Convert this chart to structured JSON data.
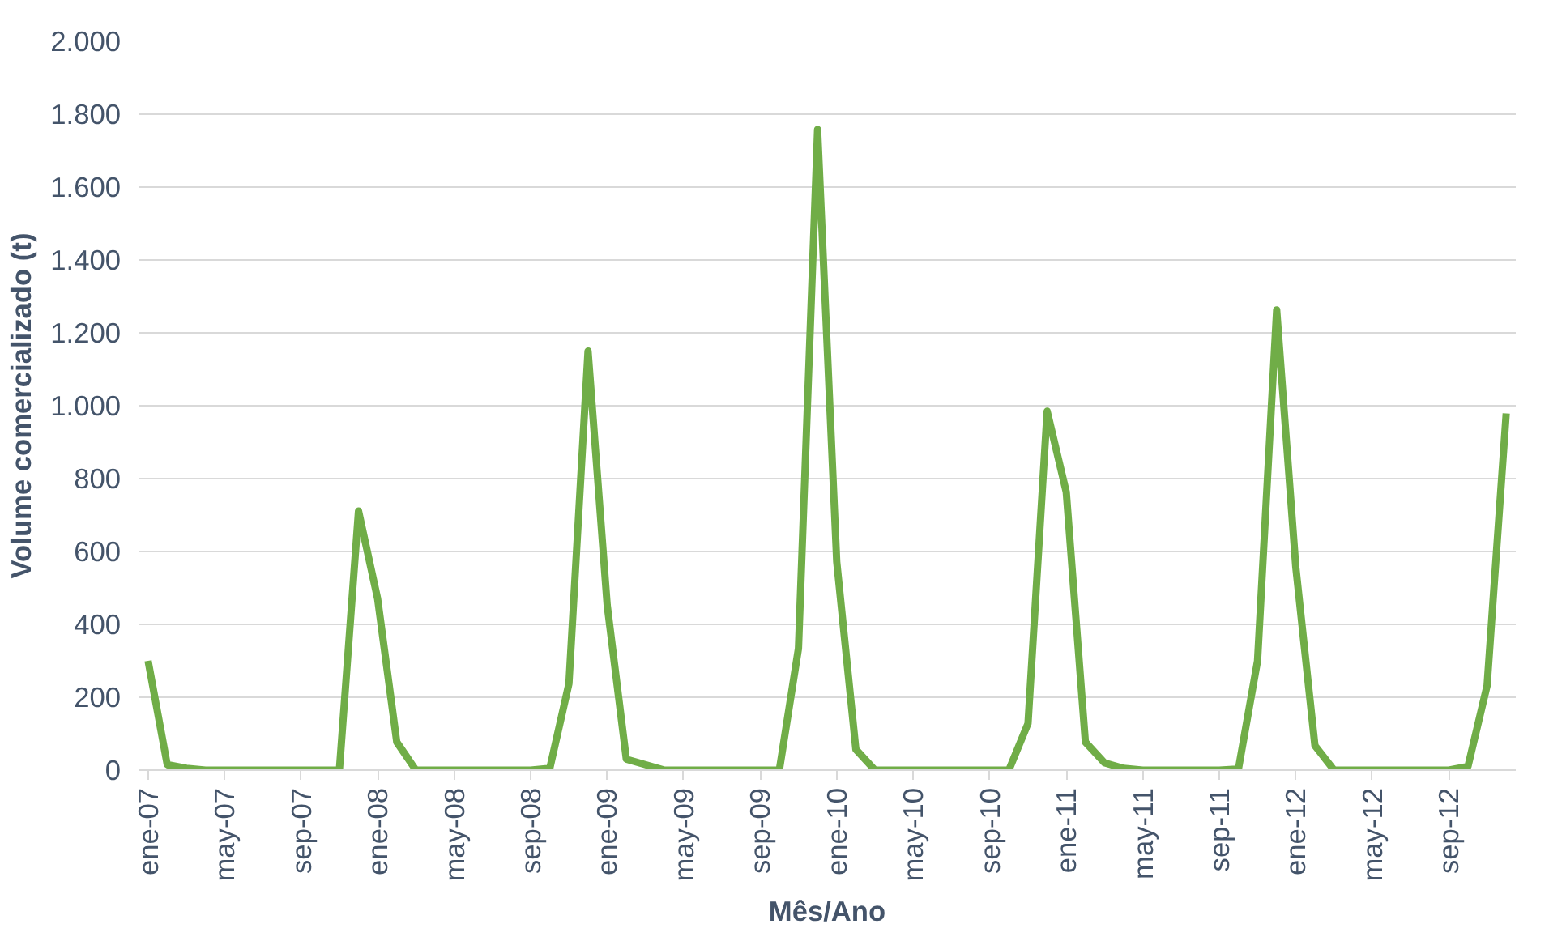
{
  "chart_data": {
    "type": "line",
    "xlabel": "Mês/Ano",
    "ylabel": "Volume comercializado (t)",
    "categories": [
      "ene-07",
      null,
      null,
      null,
      "may-07",
      null,
      null,
      null,
      "sep-07",
      null,
      null,
      null,
      "ene-08",
      null,
      null,
      null,
      "may-08",
      null,
      null,
      null,
      "sep-08",
      null,
      null,
      null,
      "ene-09",
      null,
      null,
      null,
      "may-09",
      null,
      null,
      null,
      "sep-09",
      null,
      null,
      null,
      "ene-10",
      null,
      null,
      null,
      "may-10",
      null,
      null,
      null,
      "sep-10",
      null,
      null,
      null,
      "ene-11",
      null,
      null,
      null,
      "may-11",
      null,
      null,
      null,
      "sep-11",
      null,
      null,
      null,
      "ene-12",
      null,
      null,
      null,
      "may-12",
      null,
      null,
      null,
      "sep-12",
      null,
      null,
      null
    ],
    "series": [
      {
        "color": "#70ad47",
        "values": [
          300,
          15,
          5,
          0,
          0,
          0,
          0,
          0,
          0,
          0,
          0,
          711,
          470,
          77,
          0,
          0,
          0,
          0,
          0,
          0,
          0,
          5,
          237,
          1150,
          453,
          30,
          15,
          0,
          0,
          0,
          0,
          0,
          0,
          0,
          334,
          1758,
          572,
          57,
          0,
          0,
          0,
          0,
          0,
          0,
          0,
          0,
          128,
          985,
          763,
          77,
          20,
          5,
          0,
          0,
          0,
          0,
          0,
          3,
          300,
          1263,
          557,
          67,
          0,
          0,
          0,
          0,
          0,
          0,
          0,
          10,
          232,
          979
        ]
      }
    ],
    "ylim": [
      0,
      2000
    ],
    "yticks": [
      0,
      {
        "value": 200,
        "label": "200"
      },
      {
        "value": 400,
        "label": "400"
      },
      {
        "value": 600,
        "label": "600"
      },
      {
        "value": 800,
        "label": "800"
      },
      {
        "value": 1000,
        "label": "1.000"
      },
      {
        "value": 1200,
        "label": "1.200"
      },
      {
        "value": 1400,
        "label": "1.400"
      },
      {
        "value": 1600,
        "label": "1.600"
      },
      {
        "value": 1800,
        "label": "1.800"
      },
      {
        "value": 2000,
        "label": "2.000"
      }
    ],
    "grid": "y",
    "marker": "none",
    "line_style": "solid"
  }
}
